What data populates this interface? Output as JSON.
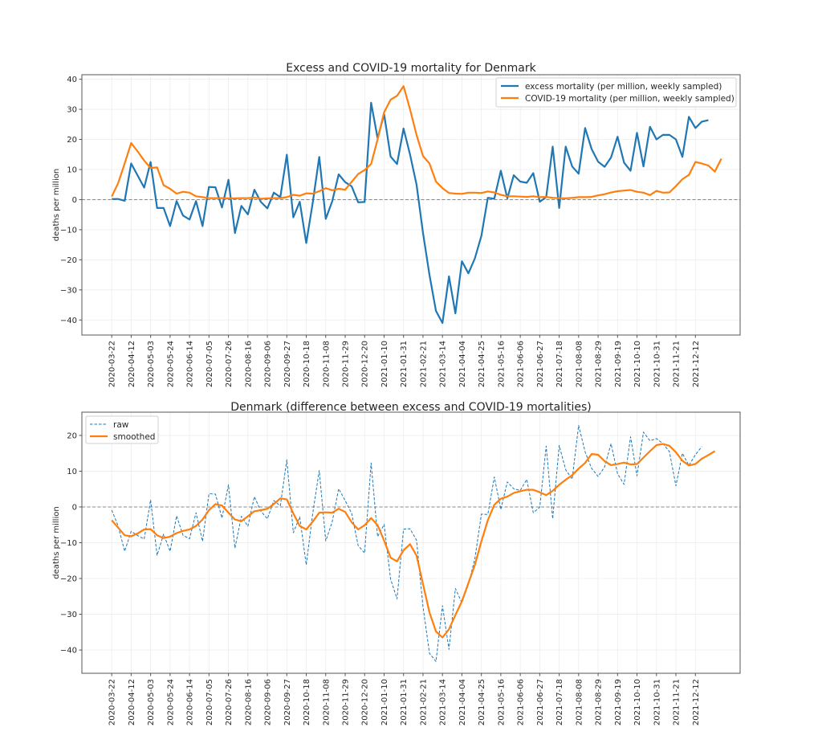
{
  "chart_data": [
    {
      "type": "line",
      "title": "Excess and COVID-19 mortality for Denmark",
      "xlabel": "",
      "ylabel": "deaths per million",
      "ylim": [
        -45,
        41.5
      ],
      "yticks": [
        -40,
        -30,
        -20,
        -10,
        0,
        10,
        20,
        30,
        40
      ],
      "ytick_labels": [
        "−40",
        "−30",
        "−20",
        "−10",
        "0",
        "10",
        "20",
        "30",
        "40"
      ],
      "x_unit": "weeks since 2020-03-22",
      "xlim_weeks": [
        -4.6,
        96.9
      ],
      "xtick_weeks": [
        0,
        3,
        6,
        9,
        12,
        15,
        18,
        21,
        24,
        27,
        30,
        33,
        36,
        39,
        42,
        45,
        48,
        51,
        54,
        57,
        60,
        63,
        66,
        69,
        72,
        75,
        78,
        81,
        84,
        87,
        90
      ],
      "xtick_labels": [
        "2020-03-22",
        "2020-04-12",
        "2020-05-03",
        "2020-05-24",
        "2020-06-14",
        "2020-07-05",
        "2020-07-26",
        "2020-08-16",
        "2020-09-06",
        "2020-09-27",
        "2020-10-18",
        "2020-11-08",
        "2020-11-29",
        "2020-12-20",
        "2021-01-10",
        "2021-01-31",
        "2021-02-21",
        "2021-03-14",
        "2021-04-04",
        "2021-04-25",
        "2021-05-16",
        "2021-06-06",
        "2021-06-27",
        "2021-07-18",
        "2021-08-08",
        "2021-08-29",
        "2021-09-19",
        "2021-10-10",
        "2021-10-31",
        "2021-11-21",
        "2021-12-12"
      ],
      "grid": true,
      "hline": 0,
      "legend_position": "top-right",
      "series": [
        {
          "name": "excess mortality (per million, weekly sampled)",
          "color": "#1f77b4",
          "style": "solid",
          "values": [
            0.2,
            0.2,
            -0.4,
            12,
            8,
            4,
            12.5,
            -2.8,
            -2.8,
            -8.8,
            -0.5,
            -5.3,
            -6.6,
            -0.5,
            -8.8,
            4.2,
            4.1,
            -2.6,
            6.6,
            -11.1,
            -2.1,
            -4.9,
            3.3,
            -0.8,
            -2.9,
            2.3,
            0.8,
            14.9,
            -5.9,
            -0.7,
            -14.4,
            -1,
            14.2,
            -6.4,
            -0.6,
            8.4,
            5.8,
            4.4,
            -0.9,
            -0.8,
            32.2,
            20.4,
            28.4,
            14.3,
            11.8,
            23.6,
            15,
            5,
            -11,
            -25,
            -37,
            -41,
            -25.5,
            -37.8,
            -20.5,
            -24.5,
            -19.5,
            -12,
            0.6,
            0.3,
            9.6,
            0.4,
            8.1,
            6,
            5.6,
            8.8,
            -0.7,
            0.8,
            17.6,
            -2.8,
            17.6,
            11,
            8.6,
            23.8,
            16.8,
            12.6,
            10.9,
            14,
            20.9,
            12.3,
            9.6,
            22.2,
            11,
            24.2,
            20,
            21.5,
            21.5,
            20,
            14.2,
            27.5,
            23.8,
            25.9,
            26.4
          ]
        },
        {
          "name": "COVID-19 mortality (per million, weekly sampled)",
          "color": "#ff7f0e",
          "style": "solid",
          "values": [
            1,
            5.5,
            12,
            18.8,
            16,
            13,
            10.5,
            10.7,
            4.8,
            3.6,
            2,
            2.6,
            2.3,
            1.1,
            0.8,
            0.5,
            0.5,
            0.5,
            0.4,
            0.4,
            0.5,
            0.5,
            0.7,
            0.3,
            0.4,
            0.5,
            0.5,
            0.8,
            1.6,
            1.3,
            2.1,
            2,
            2.8,
            3.8,
            3.1,
            3.6,
            3.3,
            5.9,
            8.5,
            9.8,
            11.8,
            20,
            29,
            33.2,
            34.5,
            37.7,
            30,
            21.5,
            14.5,
            12,
            6,
            3.8,
            2.2,
            2,
            1.9,
            2.3,
            2.3,
            2.2,
            2.7,
            2.4,
            1.6,
            1.1,
            1.1,
            1,
            0.9,
            1.1,
            0.8,
            0.9,
            0.6,
            0.5,
            0.4,
            0.6,
            0.8,
            0.8,
            0.9,
            1.4,
            1.8,
            2.4,
            2.8,
            3,
            3.2,
            2.6,
            2.3,
            1.5,
            2.9,
            2.3,
            2.4,
            4.5,
            6.8,
            8.2,
            12.5,
            12,
            11.3,
            9.3,
            13.6
          ]
        }
      ]
    },
    {
      "type": "line",
      "title": "Denmark (difference between excess and COVID-19 mortalities)",
      "xlabel": "",
      "ylabel": "deaths per million",
      "ylim": [
        -46.5,
        26.5
      ],
      "yticks": [
        -40,
        -30,
        -20,
        -10,
        0,
        10,
        20
      ],
      "ytick_labels": [
        "−40",
        "−30",
        "−20",
        "−10",
        "0",
        "10",
        "20"
      ],
      "x_unit": "weeks since 2020-03-22",
      "xlim_weeks": [
        -4.6,
        96.9
      ],
      "xtick_weeks": [
        0,
        3,
        6,
        9,
        12,
        15,
        18,
        21,
        24,
        27,
        30,
        33,
        36,
        39,
        42,
        45,
        48,
        51,
        54,
        57,
        60,
        63,
        66,
        69,
        72,
        75,
        78,
        81,
        84,
        87,
        90
      ],
      "xtick_labels": [
        "2020-03-22",
        "2020-04-12",
        "2020-05-03",
        "2020-05-24",
        "2020-06-14",
        "2020-07-05",
        "2020-07-26",
        "2020-08-16",
        "2020-09-06",
        "2020-09-27",
        "2020-10-18",
        "2020-11-08",
        "2020-11-29",
        "2020-12-20",
        "2021-01-10",
        "2021-01-31",
        "2021-02-21",
        "2021-03-14",
        "2021-04-04",
        "2021-04-25",
        "2021-05-16",
        "2021-06-06",
        "2021-06-27",
        "2021-07-18",
        "2021-08-08",
        "2021-08-29",
        "2021-09-19",
        "2021-10-10",
        "2021-10-31",
        "2021-11-21",
        "2021-12-12"
      ],
      "grid": true,
      "hline": 0,
      "legend_position": "top-left",
      "series": [
        {
          "name": "raw",
          "color": "#1f77b4",
          "style": "dashed",
          "values": [
            -0.9,
            -5.3,
            -12.4,
            -6.8,
            -8,
            -9,
            2,
            -13.5,
            -7.6,
            -12.4,
            -2.5,
            -7.9,
            -8.9,
            -1.6,
            -9.6,
            3.7,
            3.6,
            -3.1,
            6.2,
            -11.5,
            -2.6,
            -5.4,
            2.9,
            -1.2,
            -3.3,
            1.8,
            0.3,
            13.2,
            -7.2,
            -2.8,
            -16.2,
            -1.8,
            10.2,
            -9.5,
            -4.2,
            5.1,
            1.8,
            -1.8,
            -10.8,
            -12.9,
            12.3,
            -8.3,
            -4.9,
            -20.2,
            -25.7,
            -6.2,
            -6.1,
            -9.3,
            -27.8,
            -40.9,
            -43.2,
            -27.6,
            -39.8,
            -22.8,
            -26.8,
            -21.7,
            -14.4,
            -2,
            -2.1,
            8.4,
            -0.7,
            7,
            5.1,
            4.6,
            7.7,
            -1.6,
            -0.1,
            17,
            -3.3,
            17.2,
            10.4,
            7.8,
            22.8,
            15.4,
            10.8,
            8.5,
            11.2,
            17.7,
            9.3,
            6.3,
            19.6,
            8.7,
            20.9,
            18.5,
            19.1,
            17.7,
            15.5,
            5.9,
            15,
            11.6,
            14.6,
            16.9
          ]
        },
        {
          "name": "smoothed",
          "color": "#ff7f0e",
          "style": "solid",
          "values": [
            -3.7,
            -5.8,
            -7.9,
            -8.2,
            -7.4,
            -6.3,
            -6.2,
            -7.9,
            -8.7,
            -8.3,
            -7.3,
            -6.7,
            -6.3,
            -5.3,
            -3.5,
            -0.9,
            0.8,
            0.4,
            -1.6,
            -3.5,
            -4,
            -2.6,
            -1.2,
            -0.9,
            -0.5,
            0.8,
            2.4,
            2.1,
            -1.8,
            -5.3,
            -6.3,
            -4.1,
            -1.6,
            -1.5,
            -1.6,
            -0.5,
            -1.4,
            -4.3,
            -6.3,
            -5.1,
            -3.1,
            -5.1,
            -9.4,
            -14.2,
            -15.2,
            -12.1,
            -10.4,
            -13.6,
            -21.5,
            -29.5,
            -34.8,
            -36.5,
            -34.2,
            -30.2,
            -26.4,
            -21.3,
            -16.2,
            -9.6,
            -3.7,
            0.6,
            2.3,
            2.9,
            3.9,
            4.4,
            4.8,
            4.8,
            4.1,
            3.3,
            4.5,
            6.2,
            7.6,
            8.9,
            10.7,
            12.3,
            14.8,
            14.6,
            12.8,
            11.7,
            12,
            12.4,
            11.9,
            12,
            13.8,
            15.6,
            17.3,
            17.6,
            17.1,
            15.3,
            12.9,
            11.6,
            12,
            13.5,
            14.5,
            15.6
          ]
        }
      ]
    }
  ]
}
